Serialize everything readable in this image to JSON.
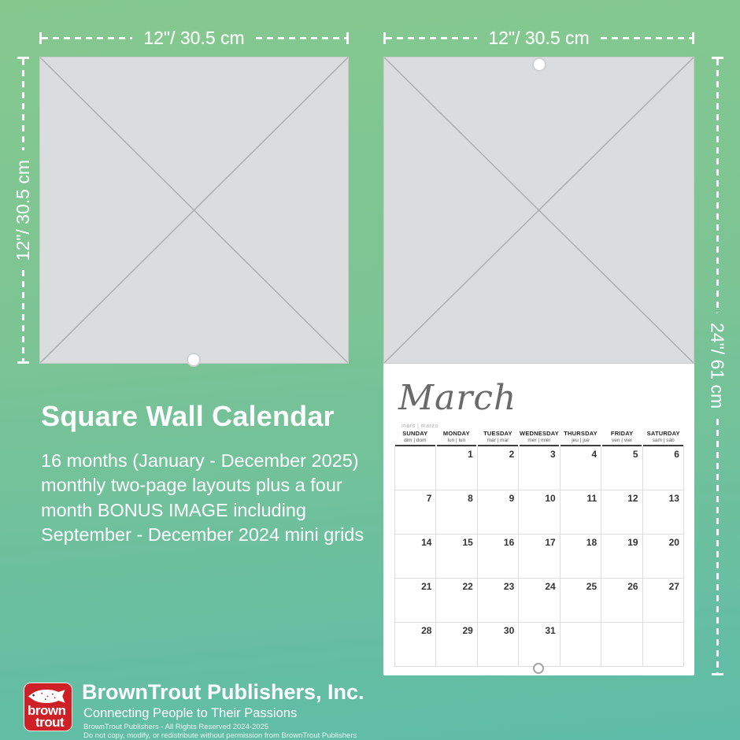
{
  "dimensions": {
    "top_left": "12\"/ 30.5 cm",
    "top_right": "12\"/ 30.5 cm",
    "side_left": "12\"/ 30.5 cm",
    "side_right": "24\"/ 61 cm"
  },
  "product": {
    "title": "Square Wall Calendar",
    "description": "16 months (January - December 2025) monthly two-page layouts plus a four month BONUS IMAGE including September - December 2024 mini grids"
  },
  "calendar": {
    "month": "March",
    "month_sub": "mars | marzo",
    "weekdays": [
      {
        "name": "SUNDAY",
        "sub": "dim | dom"
      },
      {
        "name": "MONDAY",
        "sub": "lun | lun"
      },
      {
        "name": "TUESDAY",
        "sub": "mar | mar"
      },
      {
        "name": "WEDNESDAY",
        "sub": "mer | miér"
      },
      {
        "name": "THURSDAY",
        "sub": "jeu | jue"
      },
      {
        "name": "FRIDAY",
        "sub": "ven | vier"
      },
      {
        "name": "SATURDAY",
        "sub": "sam | sáb"
      }
    ],
    "weeks": [
      [
        "",
        "1",
        "2",
        "3",
        "4",
        "5",
        "6"
      ],
      [
        "7",
        "8",
        "9",
        "10",
        "11",
        "12",
        "13"
      ],
      [
        "14",
        "15",
        "16",
        "17",
        "18",
        "19",
        "20"
      ],
      [
        "21",
        "22",
        "23",
        "24",
        "25",
        "26",
        "27"
      ],
      [
        "28",
        "29",
        "30",
        "31",
        "",
        "",
        ""
      ]
    ]
  },
  "footer": {
    "logo_line1": "brown",
    "logo_line2": "trout",
    "company": "BrownTrout Publishers, Inc.",
    "tagline": "Connecting People to Their Passions",
    "rights": "BrownTrout Publishers - All Rights Reserved 2024-2025",
    "notice": "Do not copy, modify, or redistribute without permission from BrownTrout Publishers"
  },
  "colors": {
    "background_top": "#82C78F",
    "background_bottom": "#5EBCA8",
    "placeholder_gray": "#DBDCDE",
    "logo_red": "#CE2127",
    "annotation_white": "#FFFFFF"
  }
}
